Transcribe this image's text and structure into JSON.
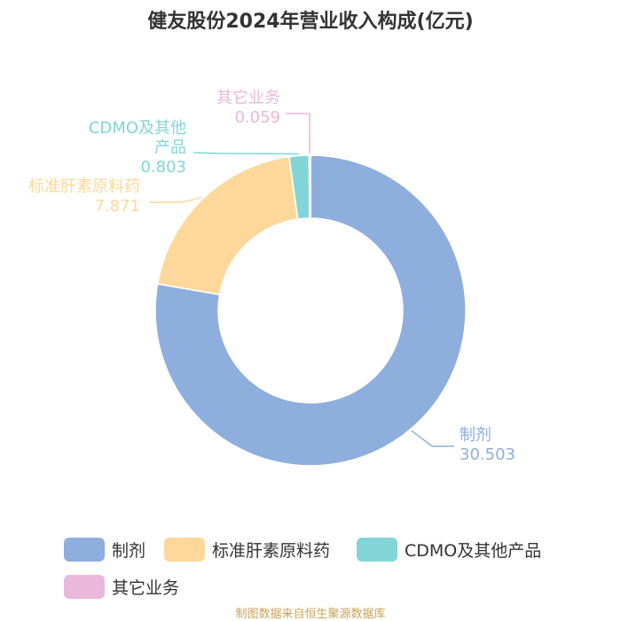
{
  "chart_data": {
    "type": "pie",
    "title": "健友股份2024年营业收入构成(亿元)",
    "categories": [
      "制剂",
      "标准肝素原料药",
      "CDMO及其他产品",
      "其它业务"
    ],
    "values": [
      30.503,
      7.871,
      0.803,
      0.059
    ],
    "value_labels": [
      "30.503",
      "7.871",
      "0.803",
      "0.059"
    ],
    "slice_labels": [
      "制剂",
      "标准肝素原料药",
      "CDMO及其他\n产品",
      "其它业务"
    ],
    "colors": [
      "#8eaedd",
      "#fed89a",
      "#82d5d6",
      "#e9b8da"
    ],
    "donut": true,
    "legend_position": "bottom"
  },
  "source_note": "制图数据来自恒生聚源数据库"
}
